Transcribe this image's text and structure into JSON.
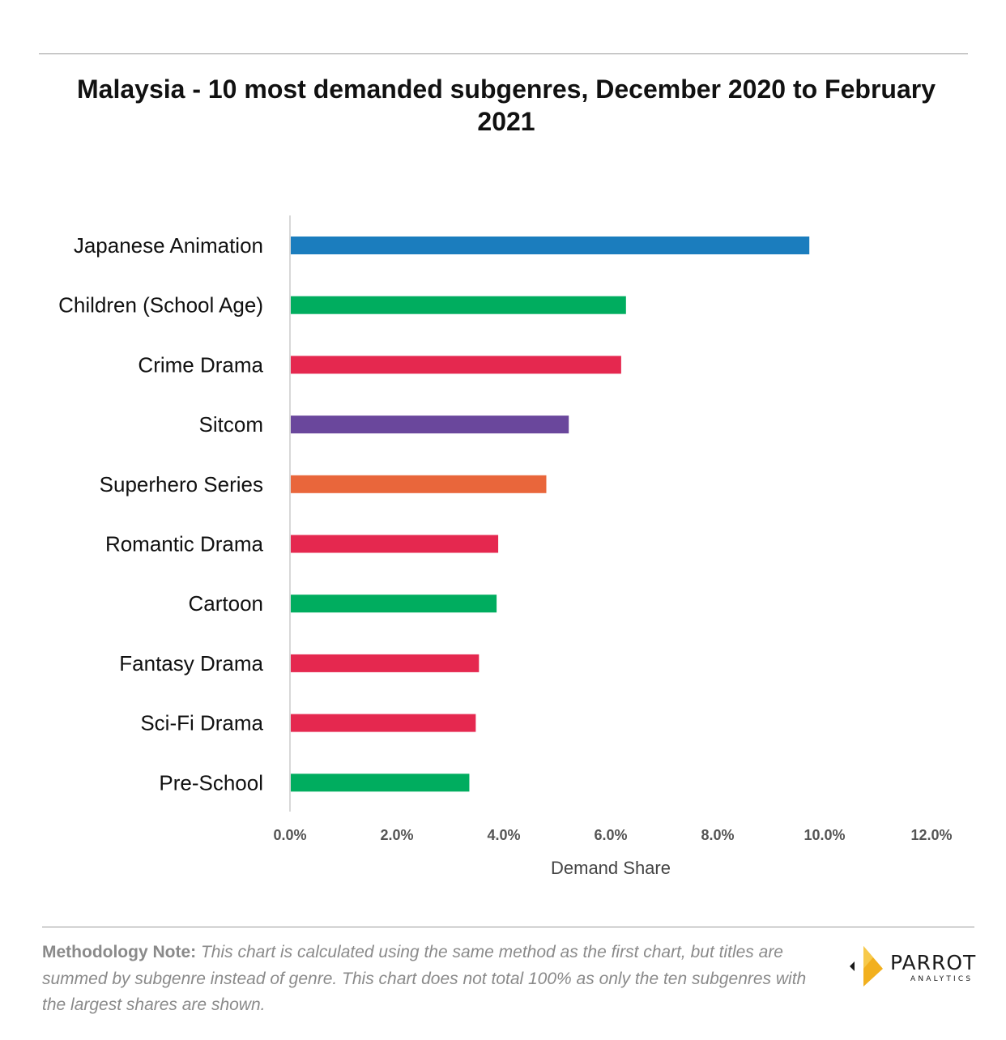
{
  "title": "Malaysia - 10 most demanded subgenres, December 2020 to February 2021",
  "chart_data": {
    "type": "bar",
    "orientation": "horizontal",
    "categories": [
      "Japanese Animation",
      "Children (School Age)",
      "Crime Drama",
      "Sitcom",
      "Superhero Series",
      "Romantic Drama",
      "Cartoon",
      "Fantasy Drama",
      "Sci-Fi Drama",
      "Pre-School"
    ],
    "values": [
      9.7,
      6.27,
      6.18,
      5.2,
      4.78,
      3.88,
      3.85,
      3.52,
      3.46,
      3.34
    ],
    "colors": [
      "#1b7dbe",
      "#00ad5f",
      "#e5284f",
      "#6a479c",
      "#e9663b",
      "#e5284f",
      "#00ad5f",
      "#e5284f",
      "#e5284f",
      "#00ad5f"
    ],
    "xlabel": "Demand Share",
    "ylabel": "",
    "xlim": [
      0,
      12
    ],
    "xticks": [
      "0.0%",
      "2.0%",
      "4.0%",
      "6.0%",
      "8.0%",
      "10.0%",
      "12.0%"
    ],
    "grid": false,
    "legend": "none"
  },
  "footer": {
    "note_label": "Methodology Note:",
    "note_text": "This chart is calculated using the same method as the first chart, but titles are summed by subgenre instead of genre. This chart does not total 100% as only the ten subgenres with the largest shares are shown."
  },
  "logo": {
    "name": "PARROT",
    "sub": "ANALYTICS",
    "accent": "#f2b01e"
  }
}
